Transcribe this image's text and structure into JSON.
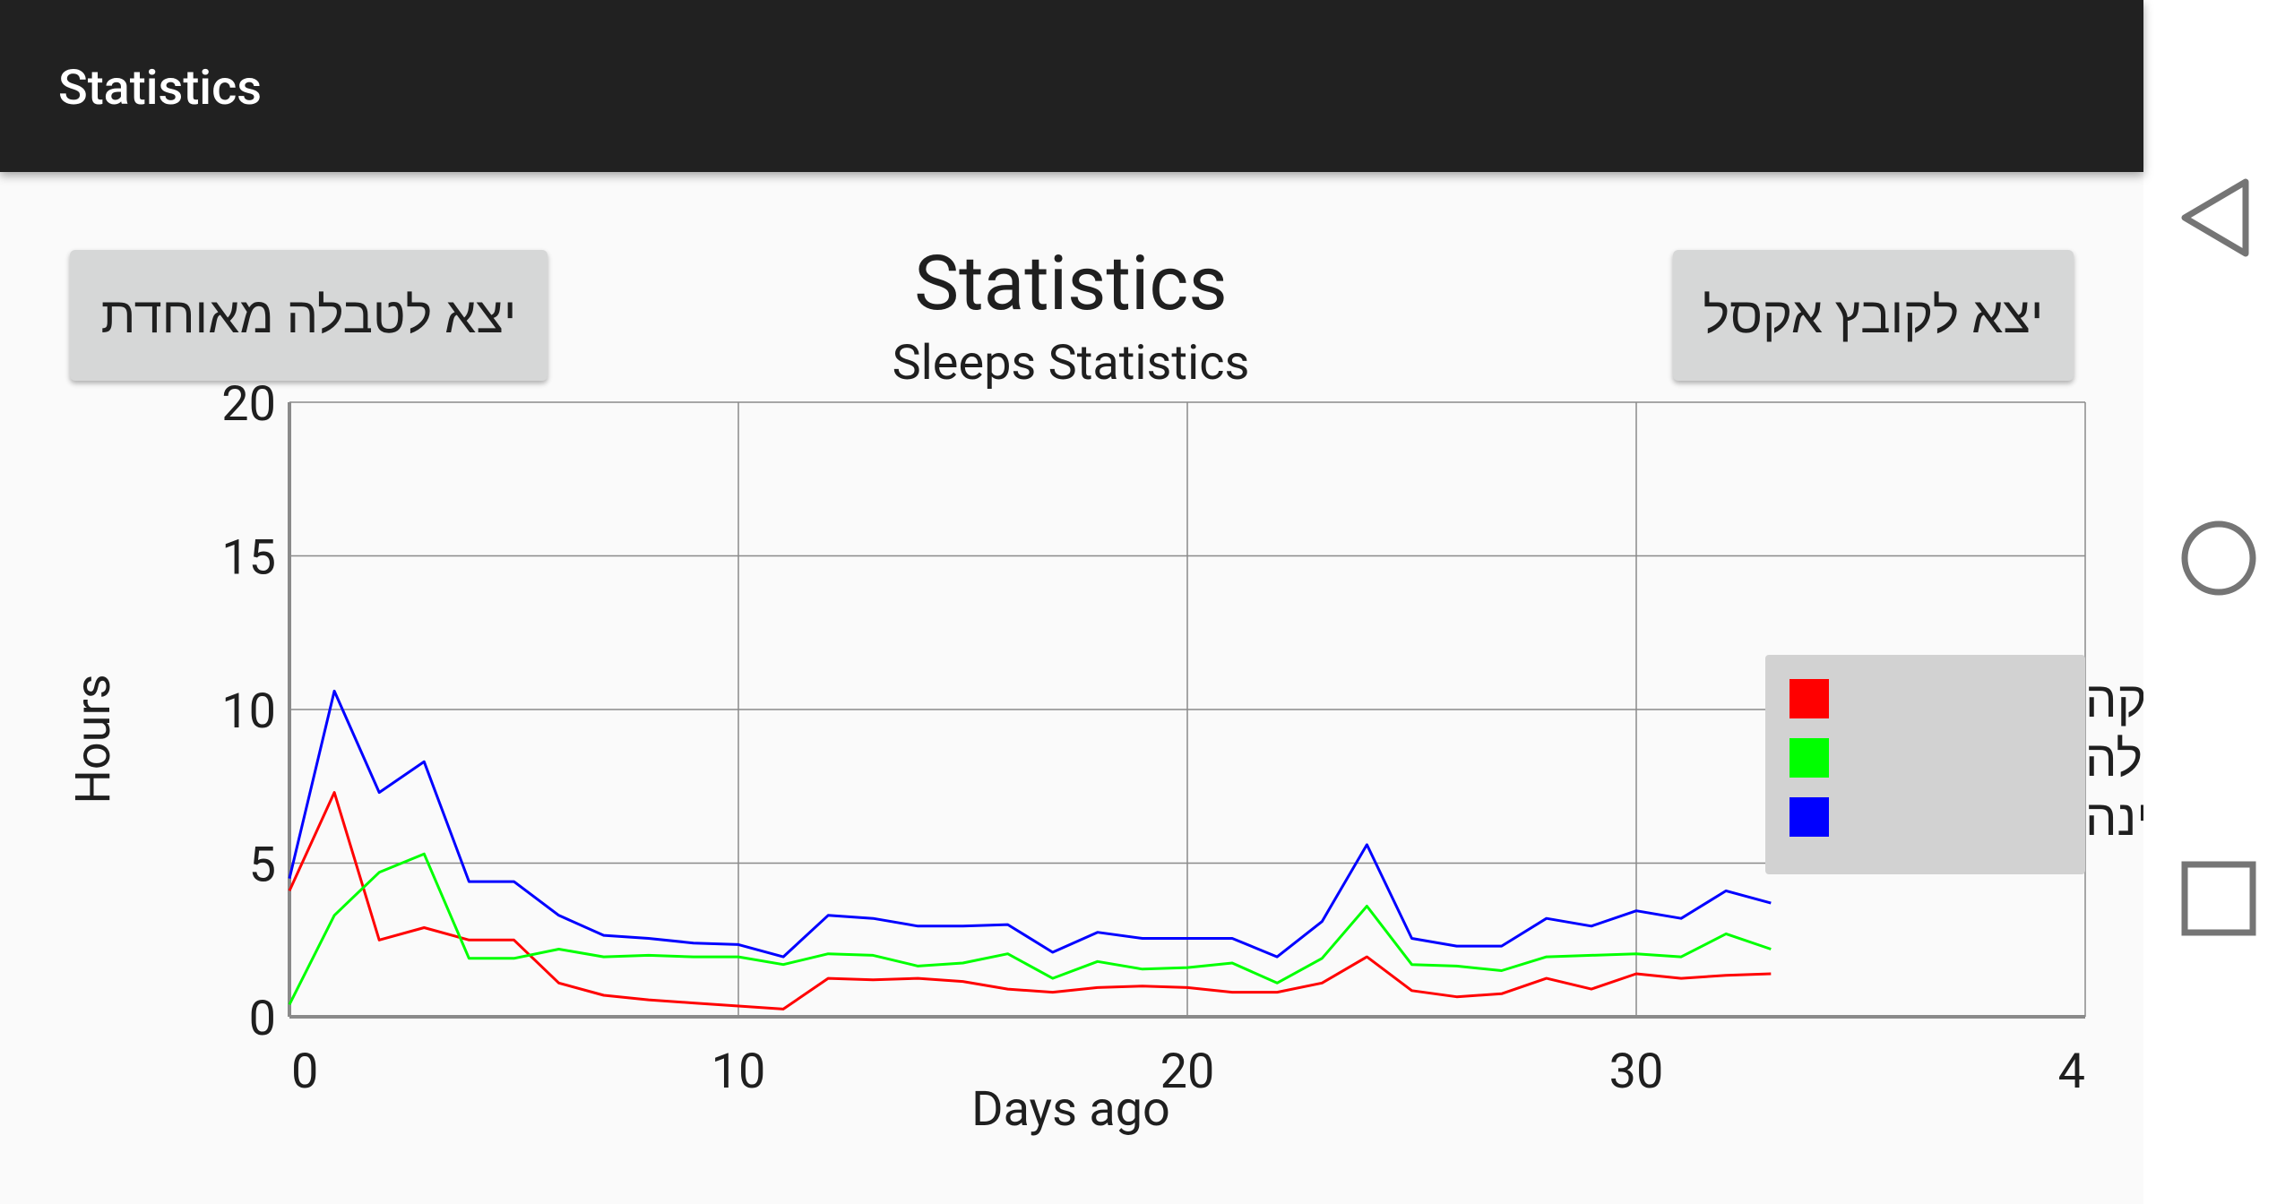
{
  "appbar": {
    "title": "Statistics"
  },
  "buttons": {
    "left_label": "יצא לטבלה מאוחדת",
    "right_label": "יצא לקובץ אקסל"
  },
  "navbar": {
    "back": "back-triangle-icon",
    "home": "home-circle-icon",
    "recents": "recents-square-icon"
  },
  "colors": {
    "appbar": "#212121",
    "deep_sleep": "#ff0000",
    "light_sleep": "#00ff00",
    "sleep_hours": "#0000ff"
  },
  "chart_data": {
    "type": "line",
    "title": "Statistics",
    "subtitle": "Sleeps Statistics",
    "xlabel": "Days ago",
    "ylabel": "Hours",
    "xlim": [
      0,
      40
    ],
    "ylim": [
      0,
      20
    ],
    "x_ticks": [
      "0",
      "10",
      "20",
      "30",
      "4"
    ],
    "y_ticks": [
      "0",
      "5",
      "10",
      "15",
      "20"
    ],
    "grid": true,
    "legend_position": "right",
    "x": [
      0,
      1,
      2,
      3,
      4,
      5,
      6,
      7,
      8,
      9,
      10,
      11,
      12,
      13,
      14,
      15,
      16,
      17,
      18,
      19,
      20,
      21,
      22,
      23,
      24,
      25,
      26,
      27,
      28,
      29,
      30,
      31,
      32,
      33
    ],
    "series": [
      {
        "name": "שינה עמוקה",
        "color": "#ff0000",
        "values": [
          4.1,
          7.3,
          2.5,
          2.9,
          2.5,
          2.5,
          1.1,
          0.7,
          0.55,
          0.45,
          0.35,
          0.25,
          1.25,
          1.2,
          1.25,
          1.15,
          0.9,
          0.8,
          0.95,
          1.0,
          0.95,
          0.8,
          0.8,
          1.1,
          1.95,
          0.85,
          0.65,
          0.75,
          1.25,
          0.9,
          1.4,
          1.25,
          1.35,
          1.4
        ]
      },
      {
        "name": "שינה קלה",
        "color": "#00ff00",
        "values": [
          0.4,
          3.3,
          4.7,
          5.3,
          1.9,
          1.9,
          2.2,
          1.95,
          2.0,
          1.95,
          1.95,
          1.7,
          2.05,
          2.0,
          1.65,
          1.75,
          2.05,
          1.25,
          1.8,
          1.55,
          1.6,
          1.75,
          1.1,
          1.9,
          3.6,
          1.7,
          1.65,
          1.5,
          1.95,
          2.0,
          2.05,
          1.95,
          2.7,
          2.2
        ]
      },
      {
        "name": "שעות שינה",
        "color": "#0000ff",
        "values": [
          4.5,
          10.6,
          7.3,
          8.3,
          4.4,
          4.4,
          3.3,
          2.65,
          2.55,
          2.4,
          2.35,
          1.95,
          3.3,
          3.2,
          2.95,
          2.95,
          3.0,
          2.1,
          2.75,
          2.55,
          2.55,
          2.55,
          1.95,
          3.1,
          5.6,
          2.55,
          2.3,
          2.3,
          3.2,
          2.95,
          3.45,
          3.2,
          4.1,
          3.7
        ]
      }
    ]
  }
}
